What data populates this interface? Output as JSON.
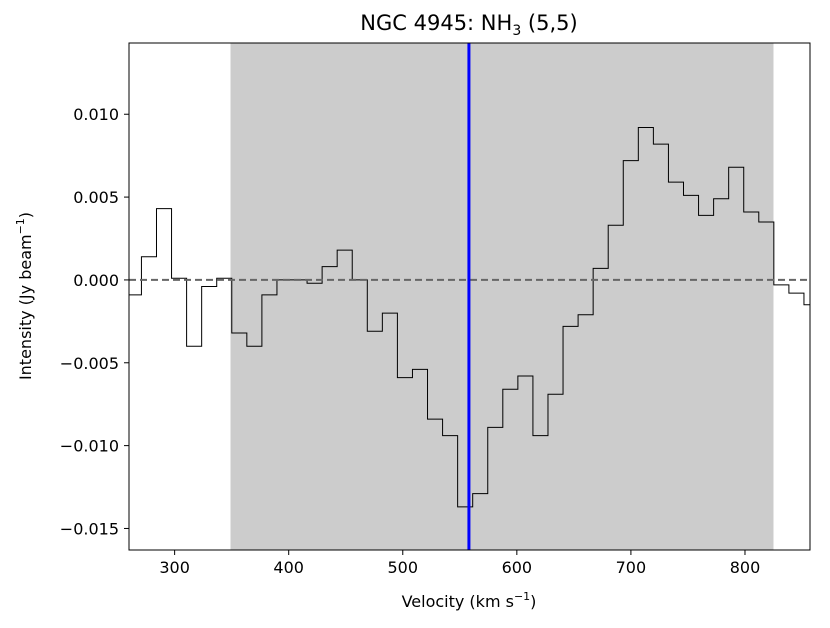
{
  "chart_data": {
    "type": "line",
    "style": "step",
    "title": "NGC 4945: NH3 (5,5)",
    "title_parts": {
      "pre": "NGC 4945: NH",
      "sub": "3",
      "post": " (5,5)"
    },
    "xlabel": "Velocity (km s−1)",
    "xlabel_parts": {
      "pre": "Velocity (km s",
      "sup": "−1",
      "post": ")"
    },
    "ylabel": "Intensity (Jy beam−1)",
    "ylabel_parts": {
      "pre": "Intensity (Jy beam",
      "sup": "−1",
      "post": ")"
    },
    "xlim": [
      260,
      857
    ],
    "ylim": [
      -0.0163,
      0.0143
    ],
    "xticks": [
      300,
      400,
      500,
      600,
      700,
      800
    ],
    "xtick_labels": [
      "300",
      "400",
      "500",
      "600",
      "700",
      "800"
    ],
    "yticks": [
      -0.015,
      -0.01,
      -0.005,
      0.0,
      0.005,
      0.01
    ],
    "ytick_labels": [
      "−0.015",
      "−0.010",
      "−0.005",
      "0.000",
      "0.005",
      "0.010"
    ],
    "grid": false,
    "shaded_region": {
      "x": [
        349,
        825
      ],
      "color": "#cccccc"
    },
    "vertical_line": {
      "x": 558,
      "color": "#0000ff"
    },
    "zero_line": {
      "y": 0,
      "color": "#666666",
      "style": "dashed"
    },
    "series": [
      {
        "color": "#000000",
        "bin_width": 13.2,
        "centers": [
          264.3,
          277.5,
          290.7,
          303.9,
          317.1,
          330.3,
          343.5,
          356.7,
          369.9,
          383.1,
          396.3,
          409.5,
          422.7,
          435.9,
          449.1,
          462.3,
          475.5,
          488.7,
          501.9,
          515.1,
          528.3,
          541.5,
          554.7,
          567.9,
          581.1,
          594.3,
          607.5,
          620.7,
          633.9,
          647.1,
          660.3,
          673.5,
          686.7,
          699.9,
          713.1,
          726.3,
          739.5,
          752.7,
          765.9,
          779.1,
          792.3,
          805.5,
          818.7,
          831.9,
          845.1,
          858.3
        ],
        "values": [
          -0.0009,
          0.0014,
          0.0043,
          0.0001,
          -0.004,
          -0.0004,
          0.0001,
          -0.0032,
          -0.004,
          -0.0009,
          0.0,
          0.0,
          -0.0002,
          0.0008,
          0.0018,
          0.0,
          -0.0031,
          -0.002,
          -0.0059,
          -0.0054,
          -0.0084,
          -0.0094,
          -0.0137,
          -0.0129,
          -0.0089,
          -0.0066,
          -0.0058,
          -0.0094,
          -0.0069,
          -0.0028,
          -0.0021,
          0.0007,
          0.0033,
          0.0072,
          0.0092,
          0.0082,
          0.0059,
          0.0051,
          0.0039,
          0.0049,
          0.0068,
          0.0041,
          0.0035,
          -0.0003,
          -0.0008,
          -0.0015
        ]
      }
    ]
  }
}
